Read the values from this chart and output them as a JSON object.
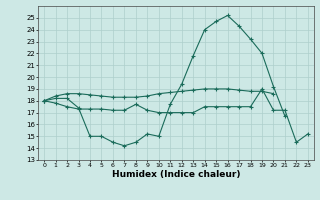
{
  "xlabel": "Humidex (Indice chaleur)",
  "x": [
    0,
    1,
    2,
    3,
    4,
    5,
    6,
    7,
    8,
    9,
    10,
    11,
    12,
    13,
    14,
    15,
    16,
    17,
    18,
    19,
    20,
    21,
    22,
    23
  ],
  "line1": [
    18.0,
    18.2,
    18.2,
    17.4,
    15.0,
    15.0,
    14.5,
    14.2,
    14.5,
    15.2,
    15.0,
    17.7,
    19.4,
    21.8,
    24.0,
    24.7,
    25.2,
    24.3,
    23.2,
    22.0,
    19.2,
    16.7,
    null,
    null
  ],
  "line2": [
    18.0,
    17.8,
    17.5,
    17.3,
    17.3,
    17.3,
    17.2,
    17.2,
    17.7,
    17.2,
    17.0,
    17.0,
    17.0,
    17.0,
    17.5,
    17.5,
    17.5,
    17.5,
    17.5,
    19.0,
    17.2,
    17.2,
    14.5,
    15.2
  ],
  "line3": [
    18.0,
    18.4,
    18.6,
    18.6,
    18.5,
    18.4,
    18.3,
    18.3,
    18.3,
    18.4,
    18.6,
    18.7,
    18.8,
    18.9,
    19.0,
    19.0,
    19.0,
    18.9,
    18.8,
    18.8,
    18.6,
    null,
    null,
    null
  ],
  "line_color": "#1a6b5a",
  "bg_color": "#cde8e5",
  "grid_color": "#aecfcc",
  "ylim_min": 13,
  "ylim_max": 26,
  "yticks": [
    13,
    14,
    15,
    16,
    17,
    18,
    19,
    20,
    21,
    22,
    23,
    24,
    25
  ],
  "xticks": [
    0,
    1,
    2,
    3,
    4,
    5,
    6,
    7,
    8,
    9,
    10,
    11,
    12,
    13,
    14,
    15,
    16,
    17,
    18,
    19,
    20,
    21,
    22,
    23
  ]
}
